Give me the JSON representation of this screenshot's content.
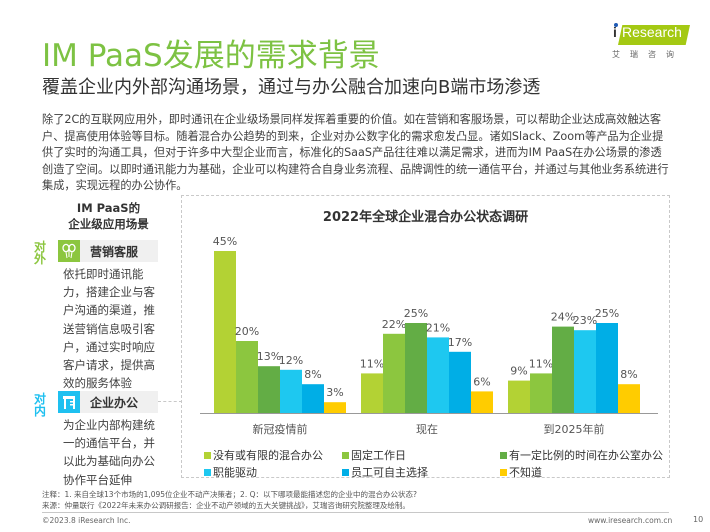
{
  "header": {
    "title": "IM PaaS发展的需求背景",
    "subtitle": "覆盖企业内外部沟通场景，通过与办公融合加速向B端市场渗透"
  },
  "logo": {
    "brand_prefix": "i",
    "brand": "Research",
    "brand_cn": "艾瑞咨询",
    "color": "#a4c913"
  },
  "intro": {
    "paragraph": "除了2C的互联网应用外，即时通讯在企业级场景同样发挥着重要的价值。如在营销和客服场景，可以帮助企业达成高效触达客户、提高使用体验等目标。随着混合办公趋势的到来，企业对办公数字化的需求愈发凸显。诸如Slack、Zoom等产品为企业提供了实时的沟通工具，但对于许多中大型企业而言，标准化的SaaS产品往往难以满足需求，进而为IM PaaS在办公场景的渗透创造了空间。以即时通讯能力为基础，企业可以构建符合自身业务流程、品牌调性的统一通信平台，并通过与其他业务系统进行集成，实现远程的办公协作。"
  },
  "scenarios": {
    "heading_line1": "IM PaaS的",
    "heading_line2": "企业级应用场景",
    "items": [
      {
        "tag": "对外",
        "tag_color": "#8cc63f",
        "icon": "balloons-icon",
        "icon_bg": "#8cc63f",
        "label": "营销客服",
        "description": "依托即时通讯能力，搭建企业与客户沟通的渠道，推送营销信息吸引客户，通过实时响应客户请求，提供高效的服务体验"
      },
      {
        "tag": "对内",
        "tag_color": "#1ec0f0",
        "icon": "office-desk-icon",
        "icon_bg": "#1ec0f0",
        "label": "企业办公",
        "description": "为企业内部构建统一的通信平台，并以此为基础向办公协作平台延伸"
      }
    ]
  },
  "chart_data": {
    "type": "bar",
    "title": "2022年全球企业混合办公状态调研",
    "categories": [
      "新冠疫情前",
      "现在",
      "到2025年前"
    ],
    "series": [
      {
        "name": "没有或有限的混合办公",
        "color": "#b3d234",
        "values": [
          45,
          11,
          9
        ]
      },
      {
        "name": "固定工作日",
        "color": "#8cc63f",
        "values": [
          20,
          22,
          11
        ]
      },
      {
        "name": "有一定比例的时间在办公室办公",
        "color": "#63ad45",
        "values": [
          13,
          25,
          24
        ]
      },
      {
        "name": "职能驱动",
        "color": "#1ec8f0",
        "values": [
          12,
          21,
          23
        ]
      },
      {
        "name": "员工可自主选择",
        "color": "#00aee6",
        "values": [
          8,
          17,
          25
        ]
      },
      {
        "name": "不知道",
        "color": "#ffcc00",
        "values": [
          3,
          6,
          8
        ]
      }
    ],
    "value_suffix": "%",
    "xlabel": "",
    "ylabel": "",
    "ylim": [
      0,
      50
    ],
    "grid": false,
    "legend_position": "bottom"
  },
  "footer": {
    "note": "注释：1. 来自全球13个市场的1,095位企业不动产决策者；2. Q：以下哪项最能描述您的企业中的混合办公状态?",
    "source": "来源：仲量联行《2022年未来办公调研报告：企业不动产领域的五大关键挑战》，艾瑞咨询研究院整理及绘制。",
    "copyright": "©2023.8 iResearch Inc.",
    "site": "www.iresearch.com.cn",
    "page": "10"
  }
}
